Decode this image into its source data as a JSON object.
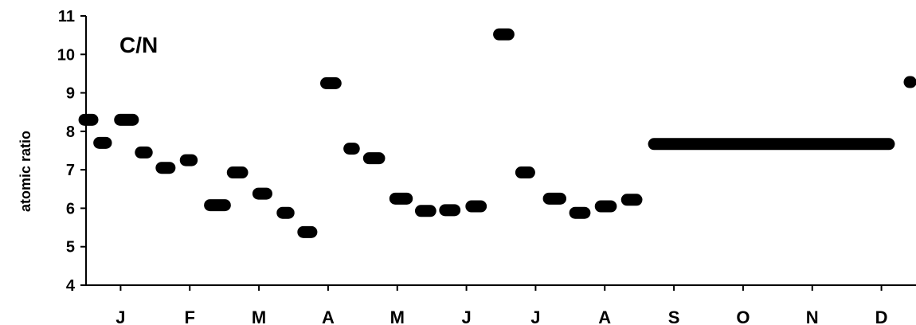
{
  "chart_data": {
    "type": "scatter",
    "title": "",
    "annotation": "C/N",
    "xlabel": "",
    "ylabel": "atomic ratio",
    "ylim": [
      4,
      11
    ],
    "yticks": [
      4,
      5,
      6,
      7,
      8,
      9,
      10,
      11
    ],
    "xlim": [
      0,
      12
    ],
    "month_labels": [
      "J",
      "F",
      "M",
      "A",
      "M",
      "J",
      "J",
      "A",
      "S",
      "O",
      "N",
      "D"
    ],
    "grid": false,
    "legend": "none",
    "marker_color": "#000000",
    "segments": [
      {
        "x_start": 0.0,
        "x_end": 0.07,
        "y": 8.3
      },
      {
        "x_start": 0.1,
        "x_end": 0.38,
        "y": 7.7
      },
      {
        "x_start": 0.4,
        "x_end": 0.77,
        "y": 8.3
      },
      {
        "x_start": 0.7,
        "x_end": 0.97,
        "y": 7.45
      },
      {
        "x_start": 1.0,
        "x_end": 1.3,
        "y": 7.05
      },
      {
        "x_start": 1.35,
        "x_end": 1.62,
        "y": 7.25
      },
      {
        "x_start": 1.7,
        "x_end": 2.1,
        "y": 6.08
      },
      {
        "x_start": 2.03,
        "x_end": 2.35,
        "y": 6.93
      },
      {
        "x_start": 2.4,
        "x_end": 2.7,
        "y": 6.38
      },
      {
        "x_start": 2.75,
        "x_end": 3.02,
        "y": 5.88
      },
      {
        "x_start": 3.05,
        "x_end": 3.35,
        "y": 5.38
      },
      {
        "x_start": 3.38,
        "x_end": 3.7,
        "y": 9.25
      },
      {
        "x_start": 3.78,
        "x_end": 3.9,
        "y": 7.55
      },
      {
        "x_start": 4.0,
        "x_end": 4.33,
        "y": 7.3
      },
      {
        "x_start": 4.38,
        "x_end": 4.73,
        "y": 6.25
      },
      {
        "x_start": 4.75,
        "x_end": 5.07,
        "y": 5.93
      },
      {
        "x_start": 5.1,
        "x_end": 5.42,
        "y": 5.95
      },
      {
        "x_start": 5.48,
        "x_end": 5.8,
        "y": 6.05
      },
      {
        "x_start": 5.88,
        "x_end": 6.2,
        "y": 10.52
      },
      {
        "x_start": 6.2,
        "x_end": 6.5,
        "y": 6.93
      },
      {
        "x_start": 6.6,
        "x_end": 6.95,
        "y": 6.25
      },
      {
        "x_start": 6.98,
        "x_end": 7.3,
        "y": 5.88
      },
      {
        "x_start": 7.35,
        "x_end": 7.68,
        "y": 6.05
      },
      {
        "x_start": 7.73,
        "x_end": 8.05,
        "y": 6.22
      },
      {
        "x_start": 8.12,
        "x_end": 11.7,
        "y": 7.67
      },
      {
        "x_start": 11.83,
        "x_end": 12.0,
        "y": 9.28
      }
    ]
  }
}
